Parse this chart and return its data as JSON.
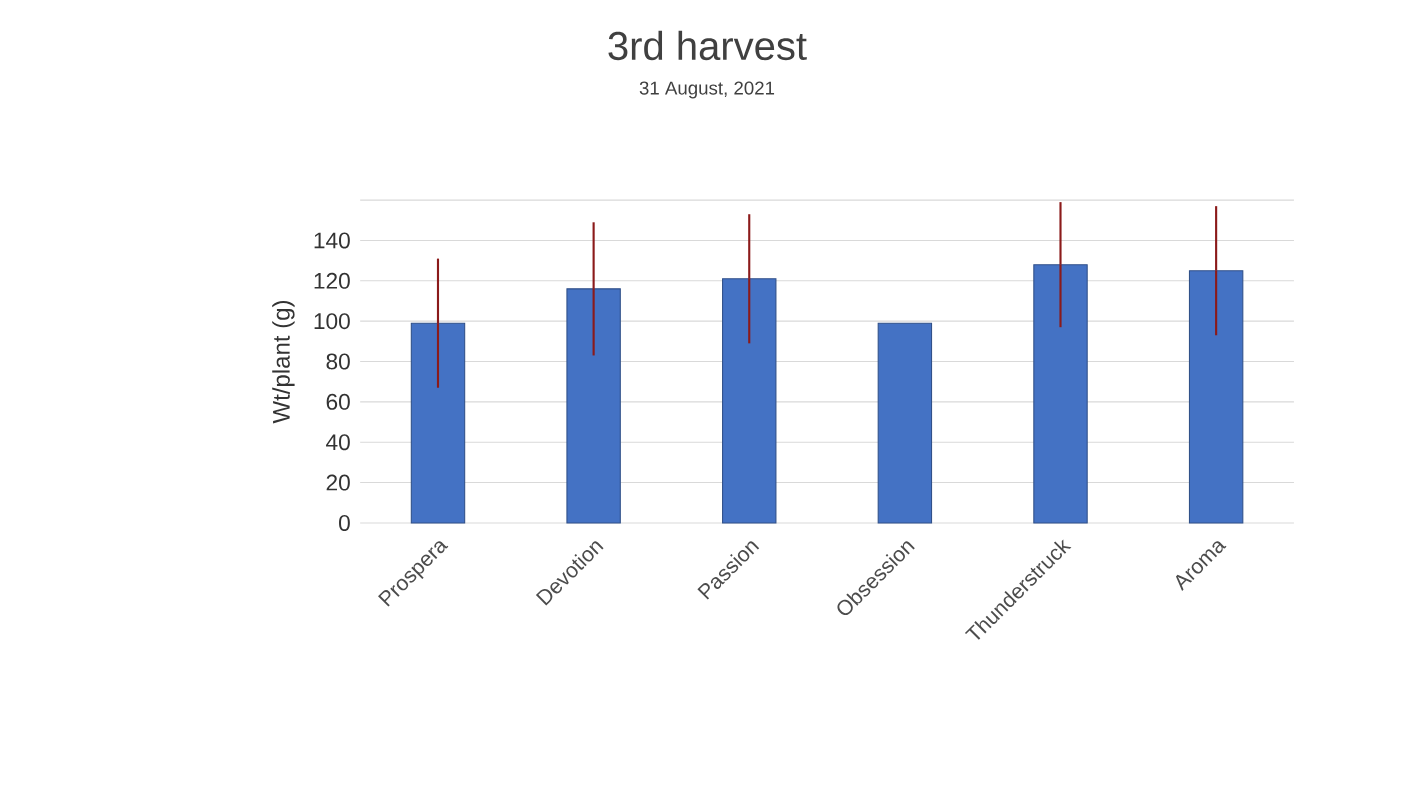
{
  "chart_data": {
    "type": "bar",
    "title": "3rd harvest",
    "subtitle": "31 August, 2021",
    "ylabel": "Wt/plant (g)",
    "categories": [
      "Prospera",
      "Devotion",
      "Passion",
      "Obsession",
      "Thunderstruck",
      "Aroma"
    ],
    "values": [
      99,
      116,
      121,
      99,
      128,
      125
    ],
    "errors": [
      32,
      33,
      32,
      null,
      31,
      32
    ],
    "color": "#4472c4",
    "ylim": [
      0,
      160
    ],
    "yticks": [
      0,
      20,
      40,
      60,
      80,
      100,
      120,
      140,
      {
        "value": 160,
        "label": null
      }
    ],
    "grid": "y"
  }
}
